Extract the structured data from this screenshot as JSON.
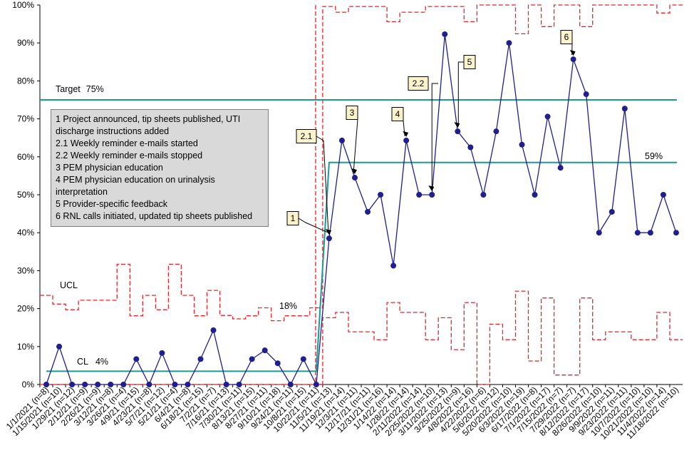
{
  "chart_data": {
    "type": "line",
    "title": "",
    "xlabel": "",
    "ylabel": "",
    "ylim": [
      0,
      100
    ],
    "y_ticks": [
      "0%",
      "10%",
      "20%",
      "30%",
      "40%",
      "50%",
      "60%",
      "70%",
      "80%",
      "90%",
      "100%"
    ],
    "grid": false,
    "categories": [
      "1/1/2021 (n=8)",
      "1/15/2021 (n=10)",
      "1/29/21 (n=12)",
      "2/12/21 (n=9)",
      "2/26/21 (n=9)",
      "3/12/21 (n=8)",
      "3/26/21 (n=4)",
      "4/9/21 (n=15)",
      "4/23/21 (n=8)",
      "5/7/21 (n=12)",
      "5/21/21 (n=4)",
      "6/4/21 (n=8)",
      "6/18/21 (n=15)",
      "7/2/21 (n=7)",
      "7/16/21 (n=13)",
      "7/30/21 (n=11)",
      "8/13/21 (n=15)",
      "8/27/21 (n=11)",
      "9/10/21 (n=18)",
      "9/24/21 (n=11)",
      "10/8/21 (n=15)",
      "10/22/21 (n=11)",
      "11/5/21 (n=13)",
      "11/19/21 (n=14)",
      "12/3/21 (n=11)",
      "12/17/21 (n=11)",
      "12/31/21 (n=16)",
      "1/14/22 (n=14)",
      "1/28/22 (n=14)",
      "2/11/2022 (n=14)",
      "2/25/2022 (n=10)",
      "3/11/2022 (n=13)",
      "3/25/2022 (n=9)",
      "4/8/2022 (n=16)",
      "4/22/2022 (n=6)",
      "5/6/2022 (n=12)",
      "5/20/2022 (n=10)",
      "6/3/2022 (n=19)",
      "6/17/2022 (n=8)",
      "7/1/2022 (n=17)",
      "7/15/2022 (n=7)",
      "7/29/2022 (n=7)",
      "8/12/2022 (n=17)",
      "8/26/2022 (n=10)",
      "9/9/2022 (n=11)",
      "9/23/2022 (n=11)",
      "10/7/2022 (n=10)",
      "10/21/2022 (n=10)",
      "11/4/2022 (n=14)",
      "11/18/2022 (n=10)"
    ],
    "series": [
      {
        "values": [
          0,
          10,
          0,
          0,
          0,
          0,
          0,
          6.7,
          0,
          8.3,
          0,
          0,
          6.7,
          14.3,
          0,
          0,
          6.7,
          9,
          5.6,
          0,
          6.7,
          0,
          38.5,
          64.3,
          54.5,
          45.5,
          50,
          31.3,
          64.3,
          50,
          50,
          92.3,
          66.7,
          62.5,
          50,
          66.7,
          90,
          63.2,
          50,
          70.6,
          57.1,
          85.7,
          76.5,
          40,
          45.5,
          72.7,
          40,
          40,
          50,
          40
        ],
        "color": "#1f1f8f"
      }
    ],
    "ucl": [
      23.5,
      21.2,
      19.7,
      22.2,
      22.2,
      22.2,
      31.7,
      18.1,
      23.5,
      19.7,
      31.7,
      23.5,
      18.1,
      24.8,
      18.2,
      17.3,
      18.1,
      20.2,
      16.8,
      18.1,
      18.1,
      20.2,
      99.6,
      98.1,
      99.6,
      99.6,
      99.6,
      95.6,
      98.1,
      98.1,
      99.6,
      99.6,
      99.6,
      95.6,
      100,
      100,
      100,
      92.4,
      100,
      94.3,
      100,
      100,
      94.3,
      100,
      100,
      100,
      100,
      100,
      97.9,
      100
    ],
    "lcl": [
      0,
      0,
      0,
      0,
      0,
      0,
      0,
      0,
      0,
      0,
      0,
      0,
      0,
      0,
      0,
      0,
      0,
      0,
      0,
      0,
      0,
      0,
      17.6,
      19,
      13.9,
      13.9,
      11.8,
      21.6,
      19,
      19,
      11.8,
      17.6,
      9.2,
      21.6,
      0,
      15.9,
      11.8,
      24.6,
      6.2,
      22.8,
      2.5,
      2.5,
      22.8,
      11.8,
      13.9,
      13.9,
      11.8,
      11.8,
      19,
      11.8
    ],
    "center_lines": [
      {
        "label": "CL",
        "value_label": "4%",
        "value": 3.5,
        "from": 0,
        "to": 21
      },
      {
        "value_label": "59%",
        "value": 58.5,
        "from": 22,
        "to": 49
      }
    ],
    "target": {
      "label": "Target",
      "value_label": "75%",
      "value": 75
    },
    "ucl_label": "UCL",
    "ucl_value_label": "18%",
    "phase_change_after_index": 21,
    "annotations": [
      {
        "label": "1",
        "point_index": 22
      },
      {
        "label": "2.1",
        "point_index": 22
      },
      {
        "label": "3",
        "point_index": 24
      },
      {
        "label": "4",
        "point_index": 28
      },
      {
        "label": "2.2",
        "point_index": 30
      },
      {
        "label": "5",
        "point_index": 32
      },
      {
        "label": "6",
        "point_index": 41
      }
    ],
    "legend_box": [
      "1 Project announced, tip sheets published, UTI discharge instructions added",
      "2.1 Weekly reminder e-mails started",
      "2.2 Weekly reminder e-mails stopped",
      "3 PEM physician education",
      "4 PEM physician education on urinalysis interpretation",
      "5 Provider-specific feedback",
      "6 RNL calls initiated, updated tip sheets published"
    ],
    "colors": {
      "series": "#1f1f8f",
      "limits": "#e8232a",
      "center": "#1a9a96",
      "annotation_fill": "#fcf3cc"
    }
  }
}
